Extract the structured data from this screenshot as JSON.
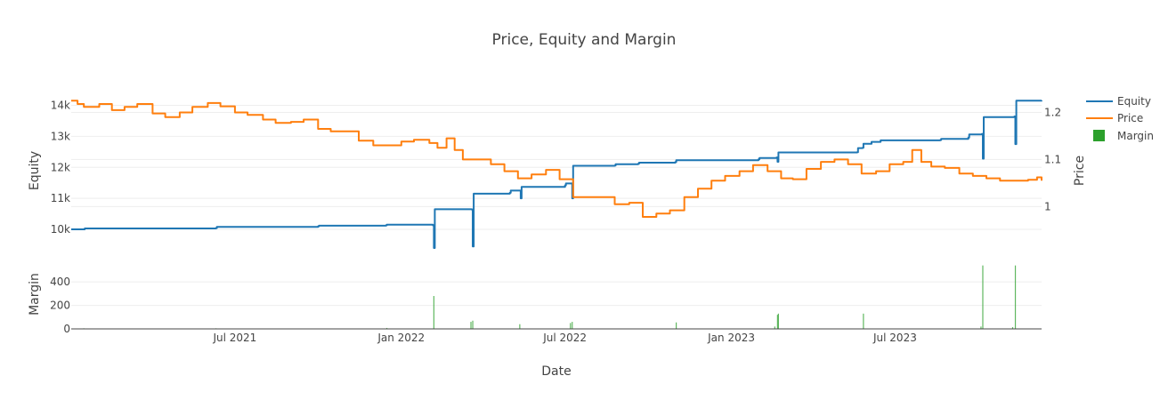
{
  "chart_data": {
    "type": "line",
    "title": "Price, Equity and Margin",
    "xlabel": "Date",
    "x_ticks": [
      "Jul 2021",
      "Jan 2022",
      "Jul 2022",
      "Jan 2023",
      "Jul 2023"
    ],
    "xlim": [
      "2021-01-01",
      "2023-12-10"
    ],
    "top_panel": {
      "ylabel_left": "Equity",
      "ylabel_right": "Price",
      "left_ticks": [
        "10k",
        "11k",
        "12k",
        "13k",
        "14k"
      ],
      "left_tick_values": [
        10000,
        11000,
        12000,
        13000,
        14000
      ],
      "right_ticks": [
        "1",
        "1.1",
        "1.2"
      ],
      "right_tick_values": [
        1.0,
        1.1,
        1.2
      ],
      "ylim_left": [
        9600,
        14300
      ],
      "ylim_right": [
        0.925,
        1.235
      ]
    },
    "bottom_panel": {
      "ylabel": "Margin",
      "ticks": [
        "0",
        "200",
        "400"
      ],
      "tick_values": [
        0,
        200,
        400
      ],
      "ylim": [
        0,
        560
      ]
    },
    "legend": {
      "position": "top-right",
      "items": [
        "Equity",
        "Price",
        "Margin"
      ]
    },
    "colors": {
      "Equity": "#1f77b4",
      "Price": "#ff7f0e",
      "Margin": "#2ca02c"
    },
    "series": [
      {
        "name": "Equity",
        "axis": "left",
        "points": [
          [
            "2021-01-01",
            10000
          ],
          [
            "2021-01-15",
            10000
          ],
          [
            "2021-01-16",
            10030
          ],
          [
            "2021-06-10",
            10040
          ],
          [
            "2021-06-11",
            10080
          ],
          [
            "2021-10-01",
            10100
          ],
          [
            "2021-10-02",
            10120
          ],
          [
            "2021-12-15",
            10130
          ],
          [
            "2021-12-16",
            10150
          ],
          [
            "2022-02-05",
            10130
          ],
          [
            "2022-02-06",
            9400
          ],
          [
            "2022-02-07",
            10650
          ],
          [
            "2022-03-20",
            10640
          ],
          [
            "2022-03-21",
            9450
          ],
          [
            "2022-03-22",
            11150
          ],
          [
            "2022-05-01",
            11180
          ],
          [
            "2022-05-02",
            11250
          ],
          [
            "2022-05-12",
            11250
          ],
          [
            "2022-05-13",
            11000
          ],
          [
            "2022-05-14",
            11370
          ],
          [
            "2022-07-01",
            11420
          ],
          [
            "2022-07-02",
            11480
          ],
          [
            "2022-07-08",
            11480
          ],
          [
            "2022-07-09",
            11000
          ],
          [
            "2022-07-10",
            12050
          ],
          [
            "2022-08-25",
            12060
          ],
          [
            "2022-08-26",
            12100
          ],
          [
            "2022-09-20",
            12120
          ],
          [
            "2022-09-21",
            12150
          ],
          [
            "2022-10-31",
            12170
          ],
          [
            "2022-11-01",
            12230
          ],
          [
            "2023-01-31",
            12260
          ],
          [
            "2023-02-01",
            12300
          ],
          [
            "2023-02-20",
            12320
          ],
          [
            "2023-02-21",
            12180
          ],
          [
            "2023-02-22",
            12480
          ],
          [
            "2023-05-20",
            12490
          ],
          [
            "2023-05-21",
            12620
          ],
          [
            "2023-05-26",
            12630
          ],
          [
            "2023-05-27",
            12760
          ],
          [
            "2023-06-05",
            12820
          ],
          [
            "2023-06-15",
            12870
          ],
          [
            "2023-08-20",
            12880
          ],
          [
            "2023-08-21",
            12920
          ],
          [
            "2023-09-20",
            12960
          ],
          [
            "2023-09-21",
            13060
          ],
          [
            "2023-10-05",
            13080
          ],
          [
            "2023-10-06",
            12280
          ],
          [
            "2023-10-07",
            13620
          ],
          [
            "2023-11-10",
            13640
          ],
          [
            "2023-11-11",
            12750
          ],
          [
            "2023-11-12",
            14150
          ],
          [
            "2023-12-10",
            14160
          ]
        ]
      },
      {
        "name": "Price",
        "axis": "right",
        "points": [
          [
            "2021-01-01",
            1.225
          ],
          [
            "2021-01-08",
            1.218
          ],
          [
            "2021-01-15",
            1.212
          ],
          [
            "2021-02-01",
            1.218
          ],
          [
            "2021-02-15",
            1.205
          ],
          [
            "2021-03-01",
            1.212
          ],
          [
            "2021-03-15",
            1.218
          ],
          [
            "2021-04-01",
            1.198
          ],
          [
            "2021-04-15",
            1.19
          ],
          [
            "2021-05-01",
            1.2
          ],
          [
            "2021-05-15",
            1.212
          ],
          [
            "2021-06-01",
            1.22
          ],
          [
            "2021-06-15",
            1.213
          ],
          [
            "2021-07-01",
            1.2
          ],
          [
            "2021-07-15",
            1.195
          ],
          [
            "2021-08-01",
            1.185
          ],
          [
            "2021-08-15",
            1.178
          ],
          [
            "2021-09-01",
            1.18
          ],
          [
            "2021-09-15",
            1.185
          ],
          [
            "2021-10-01",
            1.165
          ],
          [
            "2021-10-15",
            1.16
          ],
          [
            "2021-11-01",
            1.16
          ],
          [
            "2021-11-15",
            1.14
          ],
          [
            "2021-12-01",
            1.13
          ],
          [
            "2021-12-15",
            1.13
          ],
          [
            "2022-01-01",
            1.138
          ],
          [
            "2022-01-15",
            1.142
          ],
          [
            "2022-02-01",
            1.135
          ],
          [
            "2022-02-10",
            1.125
          ],
          [
            "2022-02-20",
            1.145
          ],
          [
            "2022-03-01",
            1.12
          ],
          [
            "2022-03-10",
            1.1
          ],
          [
            "2022-03-25",
            1.1
          ],
          [
            "2022-04-10",
            1.09
          ],
          [
            "2022-04-25",
            1.075
          ],
          [
            "2022-05-10",
            1.06
          ],
          [
            "2022-05-25",
            1.068
          ],
          [
            "2022-06-10",
            1.078
          ],
          [
            "2022-06-25",
            1.058
          ],
          [
            "2022-07-10",
            1.02
          ],
          [
            "2022-07-25",
            1.02
          ],
          [
            "2022-08-10",
            1.02
          ],
          [
            "2022-08-25",
            1.005
          ],
          [
            "2022-09-10",
            1.008
          ],
          [
            "2022-09-25",
            0.978
          ],
          [
            "2022-10-10",
            0.985
          ],
          [
            "2022-10-25",
            0.992
          ],
          [
            "2022-11-10",
            1.02
          ],
          [
            "2022-11-25",
            1.038
          ],
          [
            "2022-12-10",
            1.055
          ],
          [
            "2022-12-25",
            1.065
          ],
          [
            "2023-01-10",
            1.075
          ],
          [
            "2023-01-25",
            1.088
          ],
          [
            "2023-02-10",
            1.075
          ],
          [
            "2023-02-25",
            1.06
          ],
          [
            "2023-03-10",
            1.058
          ],
          [
            "2023-03-25",
            1.08
          ],
          [
            "2023-04-10",
            1.095
          ],
          [
            "2023-04-25",
            1.1
          ],
          [
            "2023-05-10",
            1.09
          ],
          [
            "2023-05-25",
            1.07
          ],
          [
            "2023-06-10",
            1.075
          ],
          [
            "2023-06-25",
            1.09
          ],
          [
            "2023-07-10",
            1.095
          ],
          [
            "2023-07-20",
            1.12
          ],
          [
            "2023-07-30",
            1.095
          ],
          [
            "2023-08-10",
            1.085
          ],
          [
            "2023-08-25",
            1.082
          ],
          [
            "2023-09-10",
            1.07
          ],
          [
            "2023-09-25",
            1.065
          ],
          [
            "2023-10-10",
            1.06
          ],
          [
            "2023-10-25",
            1.055
          ],
          [
            "2023-11-10",
            1.055
          ],
          [
            "2023-11-25",
            1.057
          ],
          [
            "2023-12-05",
            1.062
          ],
          [
            "2023-12-10",
            1.055
          ]
        ]
      },
      {
        "name": "Margin",
        "axis": "bottom",
        "type": "bar",
        "points": [
          [
            "2021-01-15",
            5
          ],
          [
            "2021-06-10",
            5
          ],
          [
            "2021-12-16",
            8
          ],
          [
            "2022-02-06",
            280
          ],
          [
            "2022-03-19",
            60
          ],
          [
            "2022-03-21",
            70
          ],
          [
            "2022-05-12",
            40
          ],
          [
            "2022-07-07",
            50
          ],
          [
            "2022-07-09",
            60
          ],
          [
            "2022-11-01",
            55
          ],
          [
            "2023-02-18",
            20
          ],
          [
            "2023-02-21",
            120
          ],
          [
            "2023-02-22",
            130
          ],
          [
            "2023-05-27",
            130
          ],
          [
            "2023-10-06",
            540
          ],
          [
            "2023-10-04",
            20
          ],
          [
            "2023-11-11",
            540
          ],
          [
            "2023-11-08",
            15
          ]
        ]
      }
    ]
  }
}
